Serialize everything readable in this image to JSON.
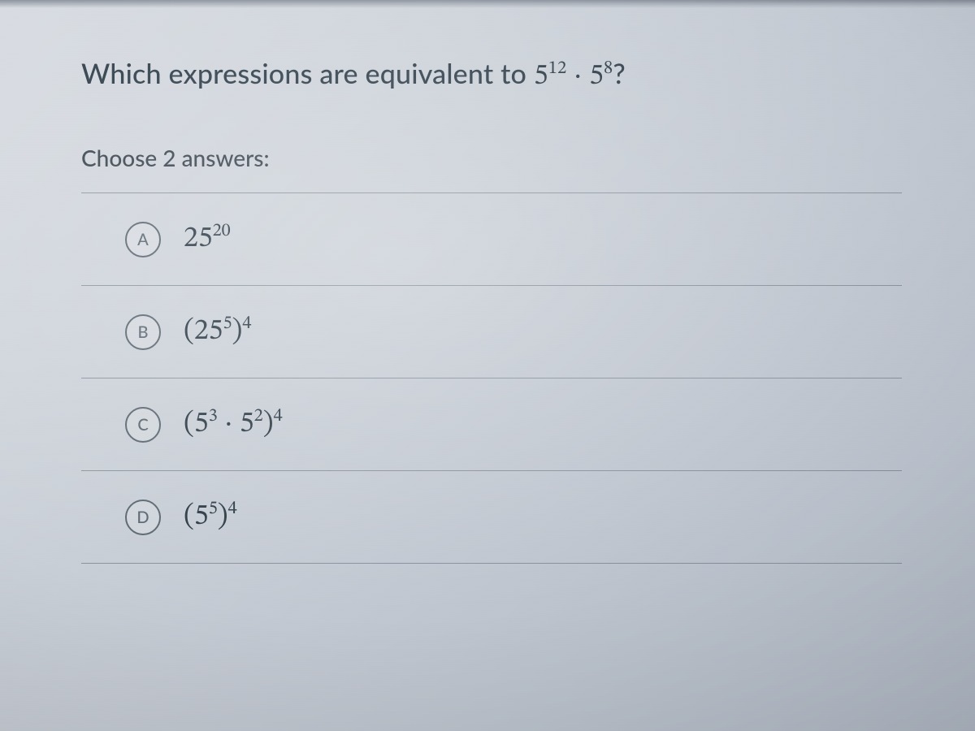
{
  "question": {
    "prefix": "Which expressions are equivalent to ",
    "base1": "5",
    "exp1": "12",
    "dot": "·",
    "base2": "5",
    "exp2": "8",
    "suffix": "?"
  },
  "instruction": "Choose 2 answers:",
  "choices": [
    {
      "letter": "A",
      "type": "pow",
      "base": "25",
      "exp": "20"
    },
    {
      "letter": "B",
      "type": "paren_pow",
      "inner_base": "25",
      "inner_exp": "5",
      "outer_exp": "4"
    },
    {
      "letter": "C",
      "type": "paren_prod",
      "t1_base": "5",
      "t1_exp": "3",
      "dot": "·",
      "t2_base": "5",
      "t2_exp": "2",
      "outer_exp": "4"
    },
    {
      "letter": "D",
      "type": "paren_pow",
      "inner_base": "5",
      "inner_exp": "5",
      "outer_exp": "4"
    }
  ],
  "style": {
    "text_color": "#2e3d49",
    "border_color": "rgba(90,100,112,0.55)",
    "bubble_border": "#5a6670"
  }
}
